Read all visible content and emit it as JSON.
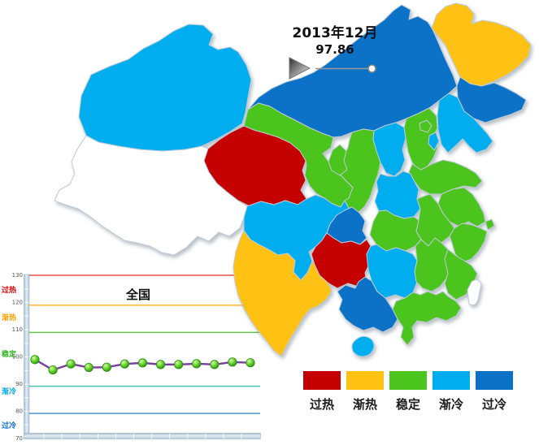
{
  "header": {
    "period": "2013年12月",
    "value": "97.86"
  },
  "legend": {
    "items": [
      {
        "key": "overheat",
        "label": "过热",
        "color": "#C40000"
      },
      {
        "key": "warming",
        "label": "渐热",
        "color": "#FFC113"
      },
      {
        "key": "stable",
        "label": "稳定",
        "color": "#4CC41E"
      },
      {
        "key": "cooling",
        "label": "渐冷",
        "color": "#00AEEF"
      },
      {
        "key": "overcool",
        "label": "过冷",
        "color": "#0B72C8"
      }
    ]
  },
  "map": {
    "no_data_color": "#FFFFFF",
    "border_color": "#BFCBD6",
    "provinces": {
      "xinjiang": {
        "status": "渐冷",
        "color": "#00AEEF"
      },
      "xizang": {
        "status": "no-data",
        "color": "#FFFFFF"
      },
      "qinghai": {
        "status": "过热",
        "color": "#C40000"
      },
      "gansu": {
        "status": "稳定",
        "color": "#4CC41E"
      },
      "neimenggu": {
        "status": "过冷",
        "color": "#0B72C8"
      },
      "ningxia": {
        "status": "稳定",
        "color": "#4CC41E"
      },
      "shaanxi": {
        "status": "稳定",
        "color": "#4CC41E"
      },
      "shanxi": {
        "status": "渐冷",
        "color": "#00AEEF"
      },
      "hebei": {
        "status": "稳定",
        "color": "#4CC41E"
      },
      "beijing": {
        "status": "稳定",
        "color": "#4CC41E"
      },
      "tianjin": {
        "status": "渐冷",
        "color": "#00AEEF"
      },
      "liaoning": {
        "status": "渐冷",
        "color": "#00AEEF"
      },
      "jilin": {
        "status": "过冷",
        "color": "#0B72C8"
      },
      "heilongjiang": {
        "status": "渐热",
        "color": "#FFC113"
      },
      "shandong": {
        "status": "稳定",
        "color": "#4CC41E"
      },
      "henan": {
        "status": "渐冷",
        "color": "#00AEEF"
      },
      "jiangsu": {
        "status": "稳定",
        "color": "#4CC41E"
      },
      "anhui": {
        "status": "稳定",
        "color": "#4CC41E"
      },
      "shanghai": {
        "status": "稳定",
        "color": "#4CC41E"
      },
      "hubei": {
        "status": "稳定",
        "color": "#4CC41E"
      },
      "zhejiang": {
        "status": "稳定",
        "color": "#4CC41E"
      },
      "jiangxi": {
        "status": "稳定",
        "color": "#4CC41E"
      },
      "fujian": {
        "status": "稳定",
        "color": "#4CC41E"
      },
      "hunan": {
        "status": "渐冷",
        "color": "#00AEEF"
      },
      "guangdong": {
        "status": "稳定",
        "color": "#4CC41E"
      },
      "guangxi": {
        "status": "过冷",
        "color": "#0B72C8"
      },
      "hainan": {
        "status": "渐冷",
        "color": "#00AEEF"
      },
      "guizhou": {
        "status": "过热",
        "color": "#C40000"
      },
      "chongqing": {
        "status": "过冷",
        "color": "#0B72C8"
      },
      "sichuan": {
        "status": "渐冷",
        "color": "#00AEEF"
      },
      "yunnan": {
        "status": "渐热",
        "color": "#FFC113"
      },
      "taiwan": {
        "status": "no-data",
        "color": "#FFFFFF"
      }
    }
  },
  "chart": {
    "title": "全国",
    "y_ticks": [
      130,
      120,
      110,
      100,
      90,
      80,
      70
    ],
    "zone_labels": [
      {
        "label": "过热",
        "color": "#E50000"
      },
      {
        "label": "渐热",
        "color": "#FFA000"
      },
      {
        "label": "稳定",
        "color": "#2DB41C"
      },
      {
        "label": "渐冷",
        "color": "#00A7F0"
      },
      {
        "label": "过冷",
        "color": "#0A6ED0"
      }
    ]
  },
  "chart_data": [
    {
      "type": "choropleth",
      "title": "2013年12月",
      "value": 97.86,
      "legend": [
        "过热",
        "渐热",
        "稳定",
        "渐冷",
        "过冷"
      ],
      "regions": {
        "overheat": [
          "qinghai",
          "guizhou"
        ],
        "warming": [
          "heilongjiang",
          "yunnan"
        ],
        "stable": [
          "gansu",
          "ningxia",
          "shaanxi",
          "hebei",
          "beijing",
          "shandong",
          "jiangsu",
          "anhui",
          "shanghai",
          "hubei",
          "zhejiang",
          "jiangxi",
          "fujian",
          "guangdong"
        ],
        "cooling": [
          "xinjiang",
          "sichuan",
          "shanxi",
          "henan",
          "hunan",
          "liaoning",
          "tianjin",
          "hainan"
        ],
        "overcooled": [
          "neimenggu",
          "jilin",
          "chongqing",
          "guangxi"
        ],
        "no_data": [
          "xizang",
          "taiwan"
        ]
      }
    },
    {
      "type": "line",
      "title": "全国",
      "x": [
        1,
        2,
        3,
        4,
        5,
        6,
        7,
        8,
        9,
        10,
        11,
        12,
        13
      ],
      "values": [
        99.0,
        95.2,
        97.4,
        96.1,
        96.2,
        97.4,
        97.8,
        97.2,
        97.2,
        97.5,
        97.2,
        98.1,
        97.86
      ],
      "ylim": [
        70,
        130
      ],
      "y_ticks": [
        130,
        120,
        110,
        100,
        90,
        80,
        70
      ],
      "grid": false,
      "line_color": "#7B3FA0",
      "marker_color": "#3FA81C",
      "reference_lines": [
        {
          "boundary": 130,
          "position": 130,
          "color": "#E3524A"
        },
        {
          "boundary": 120,
          "position": 119,
          "color": "#FFB62E"
        },
        {
          "boundary": 110,
          "position": 109,
          "color": "#67C14E"
        },
        {
          "boundary": 90,
          "position": 89.2,
          "color": "#45C2B0"
        },
        {
          "boundary": 80,
          "position": 79.2,
          "color": "#4E96CE"
        }
      ]
    }
  ]
}
